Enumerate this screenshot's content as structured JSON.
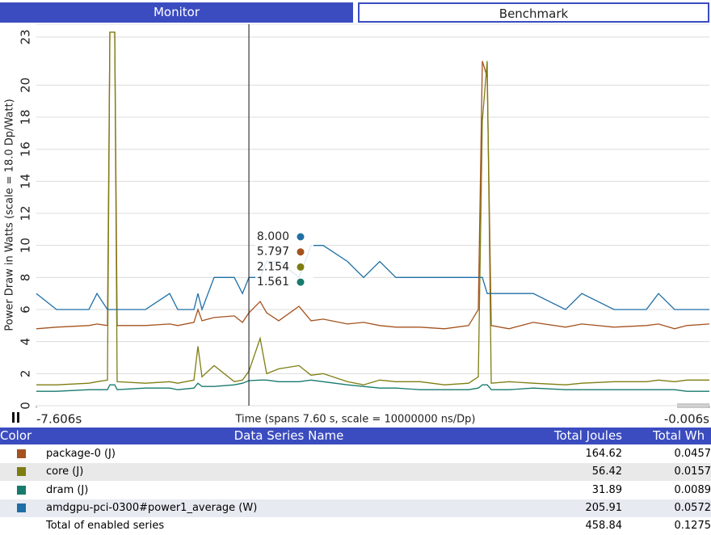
{
  "tabs": [
    "Monitor",
    "Benchmark"
  ],
  "chart_data": {
    "type": "line",
    "y_label": "Power Draw in Watts (scale = 18.0 Dp/Watt)",
    "x_label": "Time (spans 7.60 s, scale = 10000000 ns/Dp)",
    "xlim": [
      -7.606,
      -0.006
    ],
    "xticks": [
      {
        "value": -7.606,
        "label": "-7.606s"
      },
      {
        "value": -0.006,
        "label": "-0.006s"
      }
    ],
    "ylim": [
      0,
      23.8
    ],
    "yticks": [
      0,
      2,
      4,
      6,
      8,
      10,
      12,
      14,
      16,
      18,
      20,
      23
    ],
    "grid": true,
    "x": [
      -7.606,
      -7.378,
      -7.013,
      -6.922,
      -6.803,
      -6.776,
      -6.721,
      -6.694,
      -6.374,
      -6.101,
      -6.009,
      -5.827,
      -5.781,
      -5.736,
      -5.599,
      -5.371,
      -5.279,
      -5.206,
      -5.079,
      -5.006,
      -4.869,
      -4.641,
      -4.504,
      -4.367,
      -4.093,
      -3.911,
      -3.728,
      -3.546,
      -3.272,
      -2.998,
      -2.725,
      -2.615,
      -2.57,
      -2.515,
      -2.469,
      -2.269,
      -1.995,
      -1.63,
      -1.447,
      -1.083,
      -0.718,
      -0.581,
      -0.398,
      -0.261,
      -0.006
    ],
    "series": [
      {
        "name": "package-0 (J)",
        "color": "#a4521e",
        "values": [
          4.8,
          4.9,
          5.0,
          5.1,
          5.0,
          23.3,
          23.3,
          5.0,
          5.0,
          5.1,
          5.0,
          5.2,
          6.0,
          5.3,
          5.5,
          5.6,
          5.2,
          5.797,
          6.5,
          5.8,
          5.3,
          6.2,
          5.3,
          5.4,
          5.1,
          5.2,
          5.0,
          4.9,
          4.9,
          4.8,
          5.0,
          6.0,
          21.5,
          20.5,
          5.0,
          4.8,
          5.2,
          4.9,
          5.1,
          4.9,
          5.0,
          5.1,
          4.8,
          5.0,
          5.1
        ]
      },
      {
        "name": "core (J)",
        "color": "#7d7d12",
        "values": [
          1.3,
          1.3,
          1.4,
          1.5,
          1.6,
          23.3,
          23.3,
          1.5,
          1.4,
          1.5,
          1.4,
          1.6,
          3.7,
          1.8,
          2.5,
          1.5,
          1.6,
          2.154,
          4.2,
          2.0,
          2.3,
          2.5,
          1.9,
          2.0,
          1.5,
          1.3,
          1.6,
          1.5,
          1.5,
          1.3,
          1.4,
          1.8,
          17.8,
          21.5,
          1.4,
          1.5,
          1.4,
          1.3,
          1.4,
          1.5,
          1.5,
          1.6,
          1.5,
          1.6,
          1.6
        ]
      },
      {
        "name": "dram (J)",
        "color": "#167a6c",
        "values": [
          0.9,
          0.9,
          1.0,
          1.0,
          1.0,
          1.3,
          1.3,
          1.0,
          1.1,
          1.1,
          1.0,
          1.1,
          1.4,
          1.2,
          1.2,
          1.3,
          1.4,
          1.561,
          1.6,
          1.6,
          1.5,
          1.5,
          1.6,
          1.5,
          1.3,
          1.2,
          1.1,
          1.1,
          1.0,
          1.0,
          1.0,
          1.1,
          1.3,
          1.3,
          1.0,
          1.0,
          1.1,
          1.0,
          1.0,
          1.0,
          1.0,
          1.0,
          1.0,
          0.9,
          0.9
        ]
      },
      {
        "name": "amdgpu-pci-0300#power1_average (W)",
        "color": "#1f6fa6",
        "values": [
          7,
          6,
          6,
          7,
          6,
          6,
          6,
          6,
          6,
          7,
          6,
          6,
          7,
          6,
          8,
          8,
          7,
          8,
          8,
          9,
          9,
          8,
          10,
          10,
          9,
          8,
          9,
          8,
          8,
          8,
          8,
          8,
          8,
          7,
          7,
          7,
          7,
          6,
          7,
          6,
          6,
          7,
          6,
          6,
          6
        ]
      }
    ],
    "cursor": {
      "x": -5.206,
      "values": [
        8.0,
        5.797,
        2.154,
        1.561
      ],
      "value_labels": [
        "8.000",
        "5.797",
        "2.154",
        "1.561"
      ],
      "series_order": [
        3,
        0,
        1,
        2
      ]
    }
  },
  "table": {
    "header": [
      "Color",
      "Data Series Name",
      "Total Joules",
      "Total Wh"
    ],
    "rows": [
      [
        164.62,
        0.0457
      ],
      [
        56.42,
        0.0157
      ],
      [
        31.89,
        0.0089
      ],
      [
        205.91,
        0.0572
      ]
    ],
    "total": [
      "Total of enabled series",
      458.84,
      0.1275
    ]
  }
}
